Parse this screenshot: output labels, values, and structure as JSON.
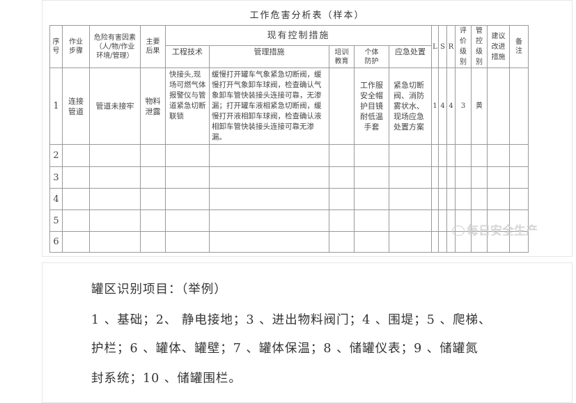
{
  "doc_title": "工作危害分析表（样本）",
  "headers": {
    "seq": "序号",
    "step": "作业步骤",
    "hazard": "危险有害因素（人/物/作业环境/管理）",
    "consequence": "主要后果",
    "controls": "现有控制措施",
    "engineering": "工程技术",
    "management": "管理措施",
    "training": "培训教育",
    "ppe": "个体防护",
    "emergency": "应急处置",
    "L": "L",
    "S": "S",
    "R": "R",
    "rating": "评价级别",
    "control_level": "管控级别",
    "suggestion": "建议改进措施",
    "remarks": "备注"
  },
  "rows": [
    {
      "seq": "1",
      "step": "连接管道",
      "hazard": "管道未接牢",
      "consequence": "物料泄露",
      "engineering": "快接头,现场可燃气体报警仪与管道紧急切断联锁",
      "management": "缓慢打开罐车气象紧急切断阀，缓慢打开气象卸车球阀，检查确认气象卸车管快装接头连接可靠，无渗漏；打开罐车液相紧急切断阀，缓慢打开液相卸车球阀，检查确认液相卸车管快装接头连接可靠无渗漏。",
      "training": "",
      "ppe": "工作服安全帽护目镜耐低温手套",
      "emergency": "紧急切断阀、消防雾状水、现场应急处置方案",
      "L": "1",
      "S": "4",
      "R": "4",
      "rating": "3",
      "control_level": "黄",
      "suggestion": "",
      "remarks": ""
    },
    {
      "seq": "2"
    },
    {
      "seq": "3"
    },
    {
      "seq": "4"
    },
    {
      "seq": "5"
    },
    {
      "seq": "6"
    }
  ],
  "watermark": "每日安全生产",
  "tank_section": {
    "heading": "罐区识别项目：（举例）",
    "lines": [
      "1 、基础；2、 静电接地；3 、进出物料阀门；4 、围堤；5 、爬梯、",
      "护栏；6 、罐体、罐壁；7 、罐体保温；8 、储罐仪表；9 、储罐氮",
      "封系统；10 、储罐围栏。"
    ]
  }
}
